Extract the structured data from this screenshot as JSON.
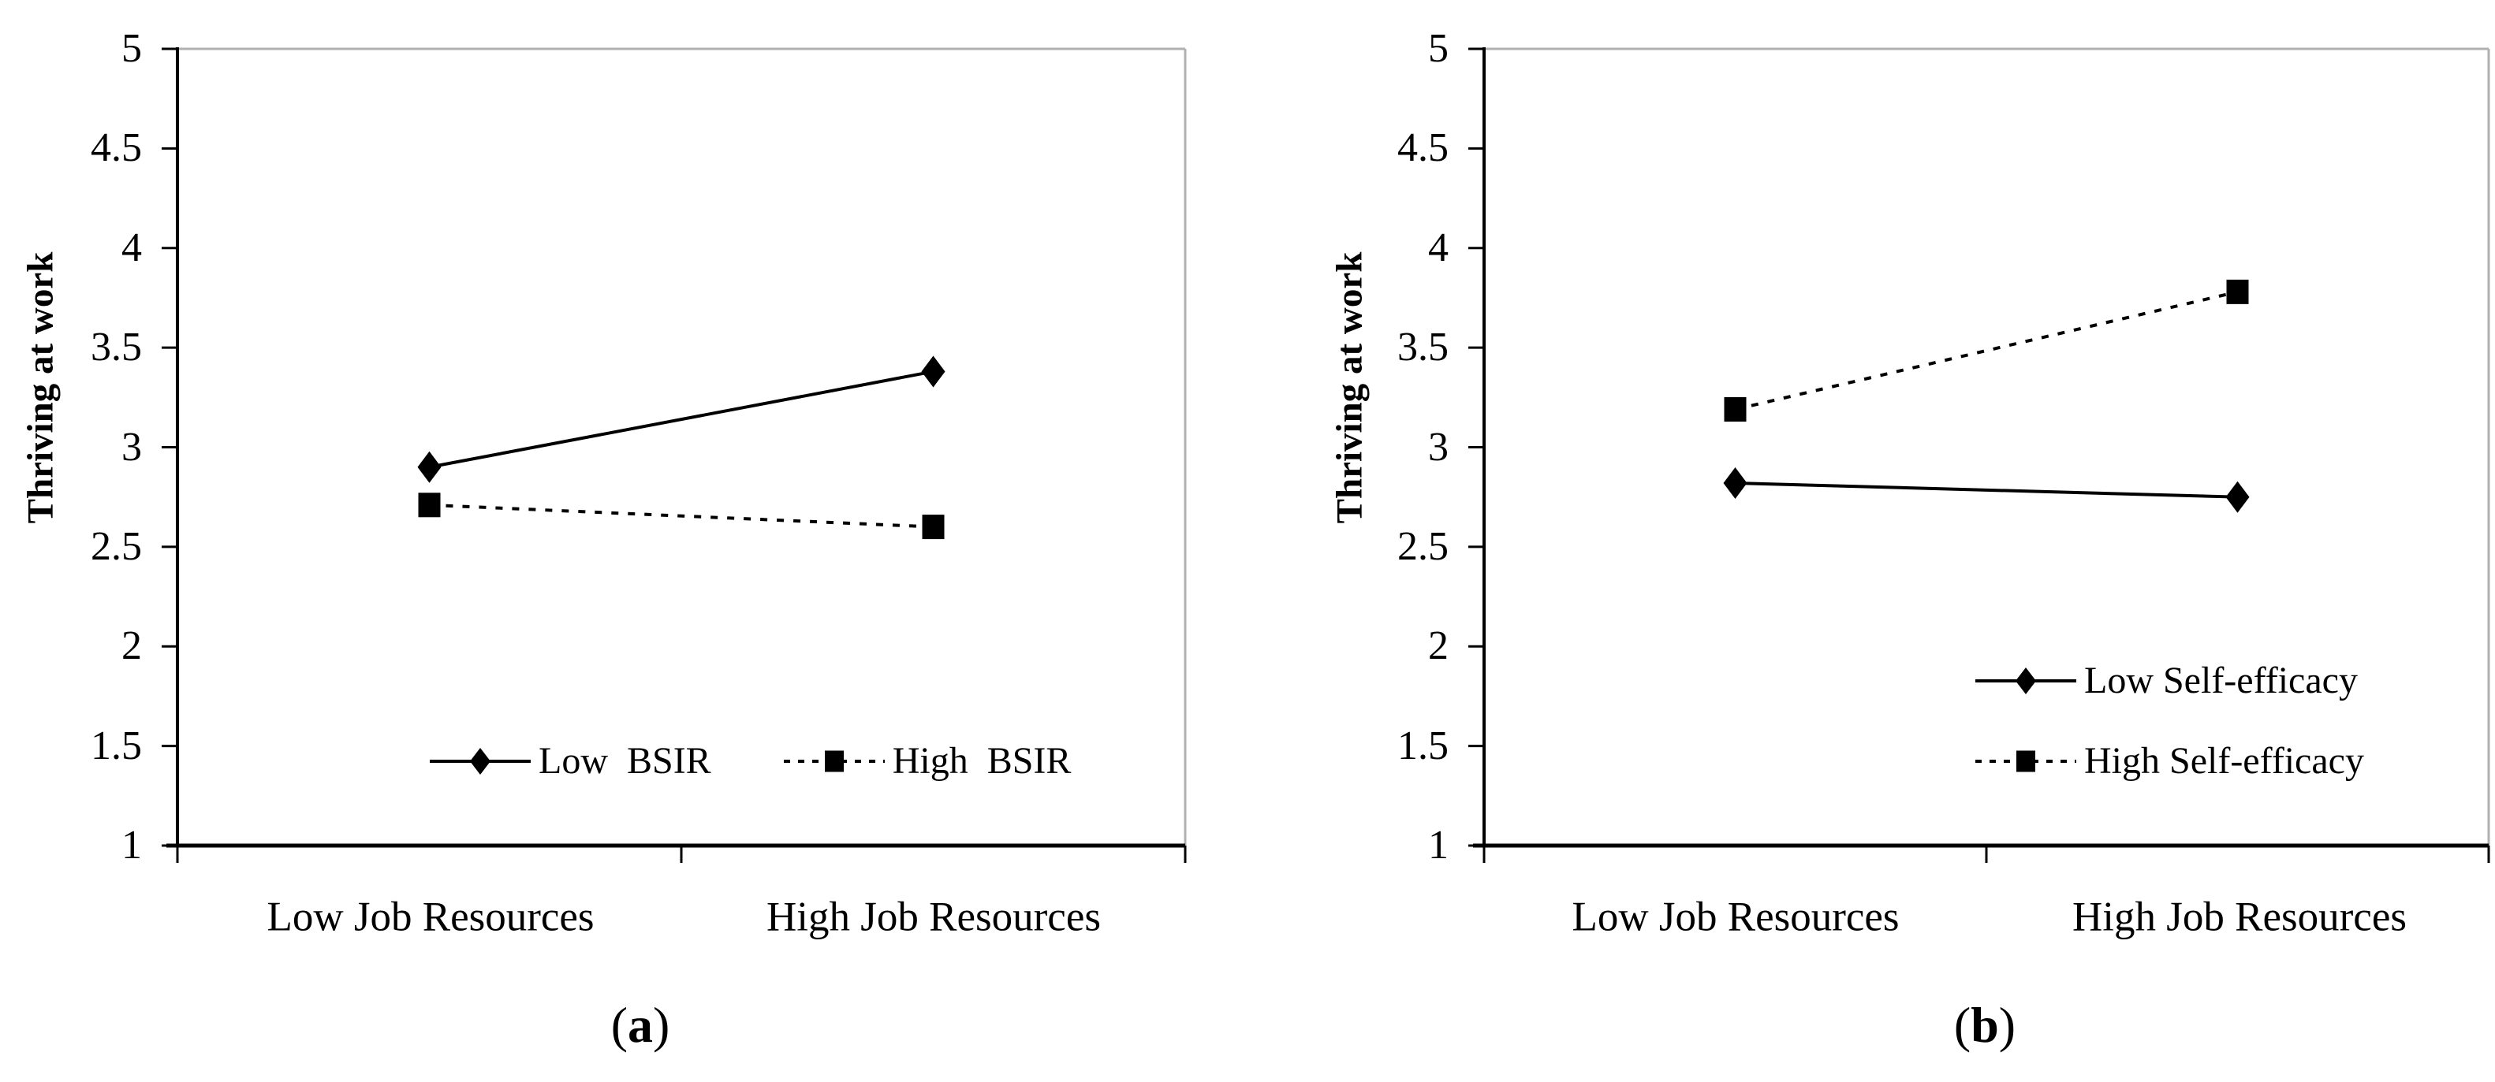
{
  "figure": {
    "background_color": "#ffffff",
    "line_color": "#000000",
    "plot_border_color": "#b0b0b0",
    "paren_open": "(",
    "paren_close": ")"
  },
  "chart_data": [
    {
      "type": "line",
      "caption": "a",
      "title": "",
      "xlabel": "",
      "ylabel": "Thriving at work",
      "categories": [
        "Low Job Resources",
        "High Job Resources"
      ],
      "ylim": [
        1,
        5
      ],
      "yticks": [
        "5",
        "4.5",
        "4",
        "3.5",
        "3",
        "2.5",
        "2",
        "1.5",
        "1"
      ],
      "grid": false,
      "legend_position": "inside bottom, horizontal",
      "series": [
        {
          "name": "Low  BSIR",
          "marker": "diamond",
          "line": "solid",
          "values": [
            2.9,
            3.38
          ]
        },
        {
          "name": "High  BSIR",
          "marker": "square",
          "line": "dashed",
          "values": [
            2.71,
            2.6
          ]
        }
      ]
    },
    {
      "type": "line",
      "caption": "b",
      "title": "",
      "xlabel": "",
      "ylabel": "Thriving at work",
      "categories": [
        "Low Job Resources",
        "High Job Resources"
      ],
      "ylim": [
        1,
        5
      ],
      "yticks": [
        "5",
        "4.5",
        "4",
        "3.5",
        "3",
        "2.5",
        "2",
        "1.5",
        "1"
      ],
      "grid": false,
      "legend_position": "inside right, stacked",
      "series": [
        {
          "name": "Low Self-efficacy",
          "marker": "diamond",
          "line": "solid",
          "values": [
            2.82,
            2.75
          ]
        },
        {
          "name": "High Self-efficacy",
          "marker": "square",
          "line": "dashed",
          "values": [
            3.19,
            3.78
          ]
        }
      ]
    }
  ]
}
